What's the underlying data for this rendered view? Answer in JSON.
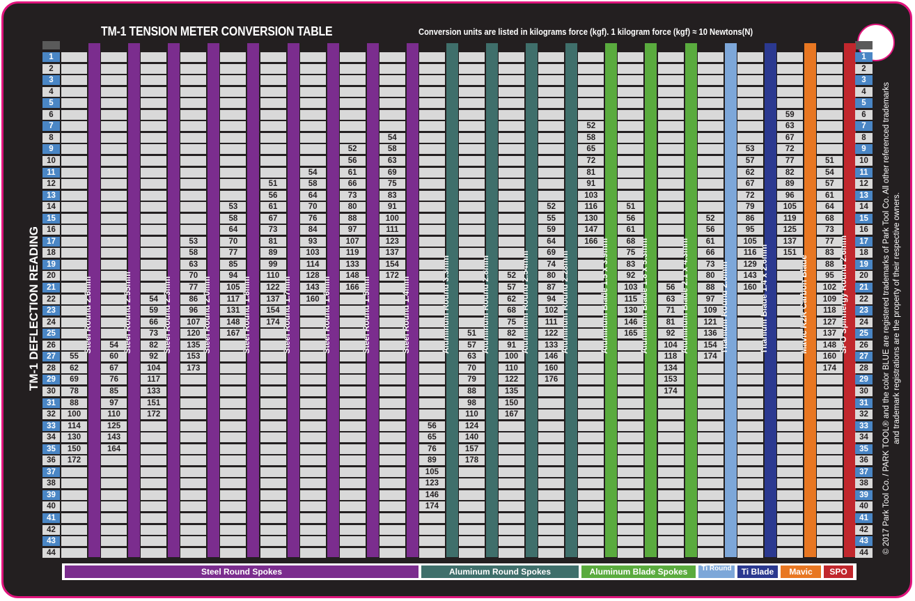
{
  "title": "TM-1 TENSION METER CONVERSION TABLE",
  "subtitle": "Conversion units are listed in kilograms force (kgf). 1 kilogram force (kgf) ≈ 10 Newtons(N)",
  "deflection_label": "TM-1 DEFLECTION READING",
  "copyright": "© 2017 Park Tool Co. / PARK TOOL® and the color BLUE are registered trademarks of Park Tool Co. All other referenced trademarks and trademark registrations are the property of their respective owners.",
  "rows": [
    "1",
    "2",
    "3",
    "4",
    "5",
    "6",
    "7",
    "8",
    "9",
    "10",
    "11",
    "12",
    "13",
    "14",
    "15",
    "16",
    "17",
    "18",
    "19",
    "20",
    "21",
    "22",
    "23",
    "24",
    "25",
    "26",
    "27",
    "28",
    "29",
    "30",
    "31",
    "32",
    "33",
    "34",
    "35",
    "36",
    "37",
    "38",
    "39",
    "40",
    "41",
    "42",
    "43",
    "44"
  ],
  "columns": [
    {
      "label": "Steel Round 2.6mm",
      "color": "#7b2d8e",
      "values": {
        "27": "55",
        "28": "62",
        "29": "69",
        "30": "78",
        "31": "88",
        "32": "100",
        "33": "114",
        "34": "130",
        "35": "150",
        "36": "172"
      }
    },
    {
      "label": "Steel Round 2.55mm",
      "color": "#7b2d8e",
      "values": {
        "26": "54",
        "27": "60",
        "28": "67",
        "29": "76",
        "30": "85",
        "31": "97",
        "32": "110",
        "33": "125",
        "34": "143",
        "35": "164"
      }
    },
    {
      "label": "Steel Round 2.3mm",
      "color": "#7b2d8e",
      "values": {
        "22": "54",
        "23": "59",
        "24": "66",
        "25": "73",
        "26": "82",
        "27": "92",
        "28": "104",
        "29": "117",
        "30": "133",
        "31": "151",
        "32": "172"
      }
    },
    {
      "label": "Steel Round 2.0mm",
      "color": "#7b2d8e",
      "values": {
        "17": "53",
        "18": "58",
        "19": "63",
        "20": "70",
        "21": "77",
        "22": "86",
        "23": "96",
        "24": "107",
        "25": "120",
        "26": "135",
        "27": "153",
        "28": "173"
      }
    },
    {
      "label": "Steel Round 1.8mm",
      "color": "#7b2d8e",
      "values": {
        "14": "53",
        "15": "58",
        "16": "64",
        "17": "70",
        "18": "77",
        "19": "85",
        "20": "94",
        "21": "105",
        "22": "117",
        "23": "131",
        "24": "148",
        "25": "167"
      }
    },
    {
      "label": "Steel Round 1.7mm",
      "color": "#7b2d8e",
      "values": {
        "12": "51",
        "13": "56",
        "14": "61",
        "15": "67",
        "16": "73",
        "17": "81",
        "18": "89",
        "19": "99",
        "20": "110",
        "21": "122",
        "22": "137",
        "23": "154",
        "24": "174"
      }
    },
    {
      "label": "Steel Round 1.6mm",
      "color": "#7b2d8e",
      "values": {
        "11": "54",
        "12": "58",
        "13": "64",
        "14": "70",
        "15": "76",
        "16": "84",
        "17": "93",
        "18": "103",
        "19": "114",
        "20": "128",
        "21": "143",
        "22": "160"
      }
    },
    {
      "label": "Steel Round 1.5mm",
      "color": "#7b2d8e",
      "values": {
        "9": "52",
        "10": "56",
        "11": "61",
        "12": "66",
        "13": "73",
        "14": "80",
        "15": "88",
        "16": "97",
        "17": "107",
        "18": "119",
        "19": "133",
        "20": "148",
        "21": "166"
      }
    },
    {
      "label": "Steel Round 1.4mm",
      "color": "#7b2d8e",
      "values": {
        "8": "54",
        "9": "58",
        "10": "63",
        "11": "69",
        "12": "75",
        "13": "83",
        "14": "91",
        "15": "100",
        "16": "111",
        "17": "123",
        "18": "137",
        "19": "154",
        "20": "172"
      }
    },
    {
      "label": "Aluminum Round 3.3mm",
      "color": "#3f6f6b",
      "values": {
        "33": "56",
        "34": "65",
        "35": "76",
        "36": "89",
        "37": "105",
        "38": "123",
        "39": "146",
        "40": "174"
      }
    },
    {
      "label": "Aluminum Round 2.8mm",
      "color": "#3f6f6b",
      "values": {
        "25": "51",
        "26": "57",
        "27": "63",
        "28": "70",
        "29": "79",
        "30": "88",
        "31": "98",
        "32": "110",
        "33": "124",
        "34": "140",
        "35": "157",
        "36": "178"
      }
    },
    {
      "label": "Aluminum Round 2.54mm",
      "color": "#3f6f6b",
      "values": {
        "20": "52",
        "21": "57",
        "22": "62",
        "23": "68",
        "24": "75",
        "25": "82",
        "26": "91",
        "27": "100",
        "28": "110",
        "29": "122",
        "30": "135",
        "31": "150",
        "32": "167"
      }
    },
    {
      "label": "Aluminum Round 2.28mm",
      "color": "#3f6f6b",
      "values": {
        "14": "52",
        "15": "55",
        "16": "59",
        "17": "64",
        "18": "69",
        "19": "74",
        "20": "80",
        "21": "87",
        "22": "94",
        "23": "102",
        "24": "111",
        "25": "122",
        "26": "133",
        "27": "146",
        "28": "160",
        "29": "176"
      }
    },
    {
      "label": "Aluminum Blade 1.5 x 3.9mm",
      "color": "#5aab3e",
      "values": {
        "7": "52",
        "8": "58",
        "9": "65",
        "10": "72",
        "11": "81",
        "12": "91",
        "13": "103",
        "14": "116",
        "15": "130",
        "16": "147",
        "17": "166"
      }
    },
    {
      "label": "Aluminum Blade 1.8 x 5.3mm",
      "color": "#5aab3e",
      "values": {
        "14": "51",
        "15": "56",
        "16": "61",
        "17": "68",
        "18": "75",
        "19": "83",
        "20": "92",
        "21": "103",
        "22": "115",
        "23": "130",
        "24": "146",
        "25": "165"
      }
    },
    {
      "label": "Aluminum Blade 2.1 x 4.3mm",
      "color": "#5aab3e",
      "values": {
        "21": "56",
        "22": "63",
        "23": "71",
        "24": "81",
        "25": "92",
        "26": "104",
        "27": "118",
        "28": "134",
        "29": "153",
        "30": "174"
      }
    },
    {
      "label": "Titanium Round 2.0mm",
      "color": "#7da7d9",
      "values": {
        "15": "52",
        "16": "56",
        "17": "61",
        "18": "66",
        "19": "73",
        "20": "80",
        "21": "88",
        "22": "97",
        "23": "109",
        "24": "121",
        "25": "136",
        "26": "154",
        "27": "174"
      }
    },
    {
      "label": "Titanium Blade 1.4 x 2.6mm",
      "color": "#2b3990",
      "values": {
        "9": "53",
        "10": "57",
        "11": "62",
        "12": "67",
        "13": "72",
        "14": "79",
        "15": "86",
        "16": "95",
        "17": "105",
        "18": "116",
        "19": "129",
        "20": "143",
        "21": "160"
      }
    },
    {
      "label": "Mavic R2R Carbon Blade",
      "color": "#e87722",
      "values": {
        "6": "59",
        "7": "63",
        "8": "67",
        "9": "72",
        "10": "77",
        "11": "82",
        "12": "89",
        "13": "96",
        "14": "105",
        "15": "119",
        "16": "125",
        "17": "137",
        "18": "151"
      }
    },
    {
      "label": "SPO Spinnergy Round 2.6mm",
      "color": "#c1272d",
      "values": {
        "10": "51",
        "11": "54",
        "12": "57",
        "13": "61",
        "14": "64",
        "15": "68",
        "16": "73",
        "17": "77",
        "18": "83",
        "19": "88",
        "20": "95",
        "21": "102",
        "22": "109",
        "23": "118",
        "24": "127",
        "25": "137",
        "26": "148",
        "27": "160",
        "28": "174"
      }
    }
  ],
  "legend": [
    {
      "label": "Steel Round Spokes",
      "color": "#7b2d8e"
    },
    {
      "label": "Aluminum Round Spokes",
      "color": "#3f6f6b"
    },
    {
      "label": "Aluminum Blade Spokes",
      "color": "#5aab3e"
    },
    {
      "label": "Ti Round",
      "color": "#7da7d9"
    },
    {
      "label": "Ti Blade",
      "color": "#2b3990"
    },
    {
      "label": "Mavic",
      "color": "#e87722"
    },
    {
      "label": "SPO",
      "color": "#c1272d"
    }
  ]
}
